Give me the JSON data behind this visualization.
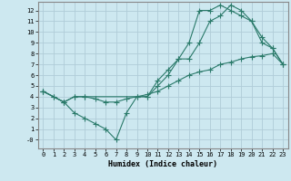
{
  "xlabel": "Humidex (Indice chaleur)",
  "bg_color": "#cde8f0",
  "grid_color": "#b0ccd8",
  "line_color": "#2a7a6a",
  "xlim": [
    -0.5,
    23.5
  ],
  "ylim": [
    -0.8,
    12.8
  ],
  "xticks": [
    0,
    1,
    2,
    3,
    4,
    5,
    6,
    7,
    8,
    9,
    10,
    11,
    12,
    13,
    14,
    15,
    16,
    17,
    18,
    19,
    20,
    21,
    22,
    23
  ],
  "yticks": [
    0,
    1,
    2,
    3,
    4,
    5,
    6,
    7,
    8,
    9,
    10,
    11,
    12
  ],
  "ytick_labels": [
    "-0",
    "1",
    "2",
    "3",
    "4",
    "5",
    "6",
    "7",
    "8",
    "9",
    "10",
    "11",
    "12"
  ],
  "line1_x": [
    0,
    1,
    2,
    3,
    4,
    10,
    11,
    12,
    13,
    14,
    15,
    16,
    17,
    18,
    19,
    20,
    21,
    22,
    23
  ],
  "line1_y": [
    4.5,
    4.0,
    3.5,
    4.0,
    4.0,
    4.0,
    5.5,
    6.5,
    7.5,
    9.0,
    12.0,
    12.0,
    12.5,
    12.0,
    11.5,
    11.0,
    9.0,
    8.5,
    7.0
  ],
  "line2_x": [
    0,
    2,
    3,
    4,
    5,
    6,
    7,
    8,
    9,
    10,
    11,
    12,
    13,
    14,
    15,
    16,
    17,
    18,
    19,
    20,
    21,
    22,
    23
  ],
  "line2_y": [
    4.5,
    3.5,
    2.5,
    2.0,
    1.5,
    1.0,
    0.0,
    2.5,
    4.0,
    4.0,
    5.0,
    6.0,
    7.5,
    7.5,
    9.0,
    11.0,
    11.5,
    12.5,
    12.0,
    11.0,
    9.5,
    8.5,
    7.0
  ],
  "line3_x": [
    0,
    1,
    2,
    3,
    4,
    5,
    6,
    7,
    8,
    9,
    10,
    11,
    12,
    13,
    14,
    15,
    16,
    17,
    18,
    19,
    20,
    21,
    22,
    23
  ],
  "line3_y": [
    4.5,
    4.0,
    3.5,
    4.0,
    4.0,
    3.8,
    3.5,
    3.5,
    3.8,
    4.0,
    4.2,
    4.5,
    5.0,
    5.5,
    6.0,
    6.3,
    6.5,
    7.0,
    7.2,
    7.5,
    7.7,
    7.8,
    8.0,
    7.0
  ]
}
